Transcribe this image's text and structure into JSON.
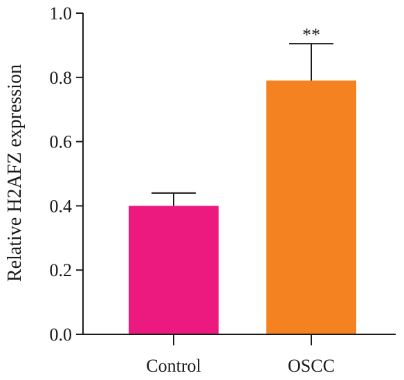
{
  "chart_data": {
    "type": "bar",
    "categories": [
      "Control",
      "OSCC"
    ],
    "values": [
      0.4,
      0.79
    ],
    "error_upper": [
      0.44,
      0.905
    ],
    "bar_colors": [
      "#ec1a7f",
      "#f58220"
    ],
    "annotations": [
      {
        "category": "OSCC",
        "text": "**"
      }
    ],
    "xlabel": "",
    "ylabel": "Relative H2AFZ expression",
    "ylim": [
      0,
      1.0
    ],
    "yticks": [
      0.0,
      0.2,
      0.4,
      0.6,
      0.8,
      1.0
    ],
    "ytick_labels": [
      "0.0",
      "0.2",
      "0.4",
      "0.6",
      "0.8",
      "1.0"
    ],
    "grid": false,
    "legend": "none"
  },
  "colors": {
    "axis": "#1a1a1a"
  }
}
